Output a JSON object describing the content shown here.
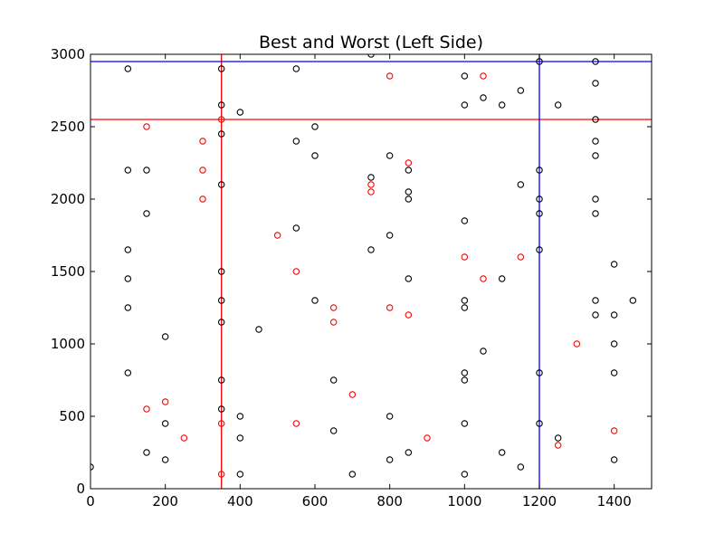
{
  "chart_data": {
    "type": "scatter",
    "title": "Best and Worst (Left Side)",
    "xlabel": "",
    "ylabel": "",
    "xlim": [
      0,
      1500
    ],
    "ylim": [
      0,
      3000
    ],
    "x_ticks": [
      0,
      200,
      400,
      600,
      800,
      1000,
      1200,
      1400
    ],
    "y_ticks": [
      0,
      500,
      1000,
      1500,
      2000,
      2500,
      3000
    ],
    "grid": false,
    "legend": "none",
    "colors": {
      "black": "#000000",
      "red": "#ff0000",
      "blue": "#0000ff"
    },
    "series": [
      {
        "color": "#000000",
        "points": [
          [
            0,
            150
          ],
          [
            100,
            2900
          ],
          [
            100,
            2200
          ],
          [
            100,
            1650
          ],
          [
            100,
            1450
          ],
          [
            100,
            1250
          ],
          [
            100,
            800
          ],
          [
            150,
            2200
          ],
          [
            150,
            1900
          ],
          [
            150,
            250
          ],
          [
            200,
            1050
          ],
          [
            200,
            450
          ],
          [
            200,
            200
          ],
          [
            350,
            2900
          ],
          [
            350,
            2650
          ],
          [
            350,
            2450
          ],
          [
            350,
            2100
          ],
          [
            350,
            1500
          ],
          [
            350,
            1300
          ],
          [
            350,
            1150
          ],
          [
            350,
            750
          ],
          [
            350,
            550
          ],
          [
            400,
            2600
          ],
          [
            400,
            500
          ],
          [
            400,
            350
          ],
          [
            400,
            100
          ],
          [
            450,
            1100
          ],
          [
            550,
            2900
          ],
          [
            550,
            2400
          ],
          [
            550,
            1800
          ],
          [
            600,
            2500
          ],
          [
            600,
            2300
          ],
          [
            600,
            1300
          ],
          [
            650,
            750
          ],
          [
            650,
            400
          ],
          [
            700,
            100
          ],
          [
            750,
            3000
          ],
          [
            750,
            2150
          ],
          [
            750,
            1650
          ],
          [
            800,
            2300
          ],
          [
            800,
            1750
          ],
          [
            800,
            500
          ],
          [
            800,
            200
          ],
          [
            850,
            2200
          ],
          [
            850,
            2050
          ],
          [
            850,
            2000
          ],
          [
            850,
            1450
          ],
          [
            850,
            250
          ],
          [
            1000,
            2850
          ],
          [
            1000,
            2650
          ],
          [
            1000,
            1850
          ],
          [
            1000,
            1300
          ],
          [
            1000,
            1250
          ],
          [
            1000,
            800
          ],
          [
            1000,
            750
          ],
          [
            1000,
            450
          ],
          [
            1000,
            100
          ],
          [
            1050,
            2700
          ],
          [
            1050,
            950
          ],
          [
            1100,
            2650
          ],
          [
            1100,
            1450
          ],
          [
            1100,
            250
          ],
          [
            1150,
            2750
          ],
          [
            1150,
            2100
          ],
          [
            1150,
            150
          ],
          [
            1200,
            2950
          ],
          [
            1200,
            2200
          ],
          [
            1200,
            2000
          ],
          [
            1200,
            1900
          ],
          [
            1200,
            1650
          ],
          [
            1200,
            800
          ],
          [
            1200,
            450
          ],
          [
            1250,
            2650
          ],
          [
            1250,
            350
          ],
          [
            1350,
            2950
          ],
          [
            1350,
            2800
          ],
          [
            1350,
            2550
          ],
          [
            1350,
            2400
          ],
          [
            1350,
            2300
          ],
          [
            1350,
            2000
          ],
          [
            1350,
            1900
          ],
          [
            1350,
            1300
          ],
          [
            1350,
            1200
          ],
          [
            1400,
            1550
          ],
          [
            1400,
            1200
          ],
          [
            1400,
            1000
          ],
          [
            1400,
            800
          ],
          [
            1400,
            200
          ],
          [
            1450,
            1300
          ]
        ]
      },
      {
        "color": "#ff0000",
        "points": [
          [
            150,
            2500
          ],
          [
            150,
            550
          ],
          [
            200,
            600
          ],
          [
            250,
            350
          ],
          [
            300,
            2400
          ],
          [
            300,
            2200
          ],
          [
            300,
            2000
          ],
          [
            350,
            2550
          ],
          [
            350,
            450
          ],
          [
            350,
            100
          ],
          [
            500,
            1750
          ],
          [
            550,
            1500
          ],
          [
            550,
            450
          ],
          [
            650,
            1250
          ],
          [
            650,
            1150
          ],
          [
            700,
            650
          ],
          [
            750,
            2100
          ],
          [
            750,
            2050
          ],
          [
            800,
            2850
          ],
          [
            800,
            1250
          ],
          [
            850,
            2250
          ],
          [
            850,
            1200
          ],
          [
            900,
            350
          ],
          [
            1000,
            1600
          ],
          [
            1050,
            2850
          ],
          [
            1050,
            1450
          ],
          [
            1150,
            1600
          ],
          [
            1250,
            300
          ],
          [
            1300,
            1000
          ],
          [
            1400,
            400
          ]
        ]
      }
    ],
    "reference_lines": [
      {
        "orientation": "vertical",
        "value": 350,
        "color": "#ff0000"
      },
      {
        "orientation": "horizontal",
        "value": 2550,
        "color": "#ff0000"
      },
      {
        "orientation": "vertical",
        "value": 1200,
        "color": "#0000ff"
      },
      {
        "orientation": "horizontal",
        "value": 2950,
        "color": "#0000ff"
      }
    ]
  }
}
